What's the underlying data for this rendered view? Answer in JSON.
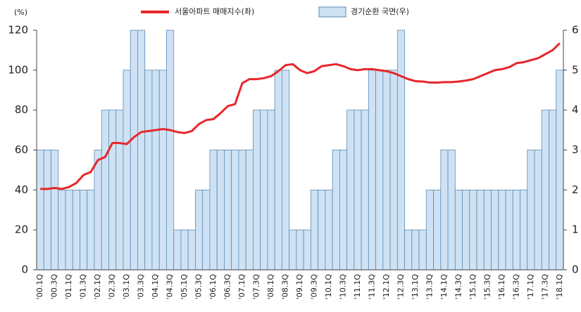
{
  "chart_data": {
    "type": "bar-line",
    "y_label": "(%)",
    "categories": [
      "'00.1Q",
      null,
      "'00.3Q",
      null,
      "'01.1Q",
      null,
      "'01.3Q",
      null,
      "'02.1Q",
      null,
      "'02.3Q",
      null,
      "'03.1Q",
      null,
      "'03.3Q",
      null,
      "'04.1Q",
      null,
      "'04.3Q",
      null,
      "'05.1Q",
      null,
      "'05.3Q",
      null,
      "'06.1Q",
      null,
      "'06.3Q",
      null,
      "'07.1Q",
      null,
      "'07.3Q",
      null,
      "'08.1Q",
      null,
      "'08.3Q",
      null,
      "'09.1Q",
      null,
      "'09.3Q",
      null,
      "'10.1Q",
      null,
      "'10.3Q",
      null,
      "'11.1Q",
      null,
      "'11.3Q",
      null,
      "'12.1Q",
      null,
      "'12.3Q",
      null,
      "'13.1Q",
      null,
      "'13.3Q",
      null,
      "'14.1Q",
      null,
      "'14.3Q",
      null,
      "'15.1Q",
      null,
      "'15.3Q",
      null,
      "'16.1Q",
      null,
      "'16.3Q",
      null,
      "'17.1Q",
      null,
      "'17.3Q",
      null,
      "'18.1Q"
    ],
    "series": [
      {
        "name": "경기순환 국면(우)",
        "kind": "bar",
        "axis": "y2",
        "color": "#cfe2f3",
        "edge": "#5a8bb5",
        "values": [
          3,
          3,
          3,
          2,
          2,
          2,
          2,
          2,
          3,
          4,
          4,
          4,
          5,
          6,
          6,
          5,
          5,
          5,
          6,
          1,
          1,
          1,
          2,
          2,
          3,
          3,
          3,
          3,
          3,
          3,
          4,
          4,
          4,
          5,
          5,
          1,
          1,
          1,
          2,
          2,
          2,
          3,
          3,
          4,
          4,
          4,
          5,
          5,
          5,
          5,
          6,
          1,
          1,
          1,
          2,
          2,
          3,
          3,
          2,
          2,
          2,
          2,
          2,
          2,
          2,
          2,
          2,
          2,
          3,
          3,
          4,
          4,
          5
        ]
      },
      {
        "name": "서울아파트 매매지수(좌)",
        "kind": "line",
        "axis": "y",
        "color": "#e8262a",
        "values": [
          40.5,
          40.5,
          41,
          40.5,
          41.5,
          43.5,
          47.5,
          49,
          55,
          56.5,
          63.5,
          63.5,
          63,
          66.5,
          69,
          69.5,
          70,
          70.5,
          70,
          69,
          68.5,
          69.5,
          73,
          75,
          75.5,
          78.5,
          82,
          83,
          93.5,
          95.5,
          95.5,
          96,
          97,
          99.5,
          102.5,
          103,
          100,
          98.5,
          99.5,
          102,
          102.5,
          103,
          102,
          100.5,
          100,
          100.5,
          100.5,
          100,
          99.5,
          98.5,
          97,
          95.5,
          94.5,
          94.3,
          93.8,
          93.8,
          94,
          94,
          94.3,
          94.8,
          95.5,
          97,
          98.5,
          100,
          100.5,
          101.5,
          103.5,
          104,
          105,
          106,
          108,
          110,
          113.5
        ]
      }
    ],
    "ylim": [
      0,
      120
    ],
    "yticks": [
      0,
      20,
      40,
      60,
      80,
      100,
      120
    ],
    "y2lim": [
      0,
      6
    ],
    "y2ticks": [
      0,
      1,
      2,
      3,
      4,
      5,
      6
    ]
  }
}
